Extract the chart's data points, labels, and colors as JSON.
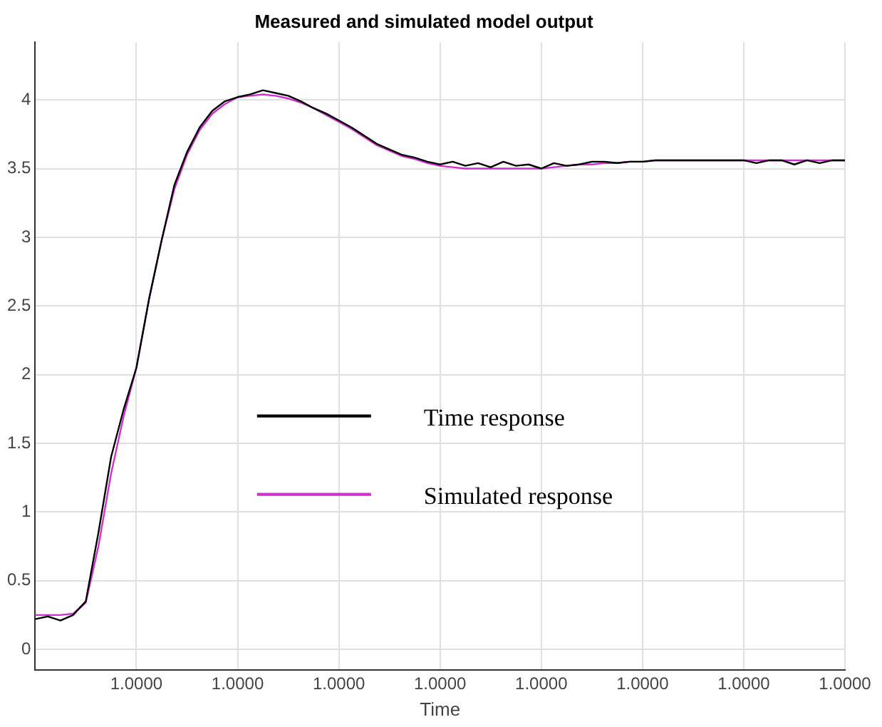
{
  "chart_data": {
    "type": "line",
    "title": "Measured and simulated model output",
    "xlabel": "Time",
    "categories": [
      null,
      null,
      null,
      null,
      null,
      null,
      null,
      null,
      "1.0000",
      null,
      null,
      null,
      null,
      null,
      null,
      null,
      "1.0000",
      null,
      null,
      null,
      null,
      null,
      null,
      null,
      "1.0000",
      null,
      null,
      null,
      null,
      null,
      null,
      null,
      "1.0000",
      null,
      null,
      null,
      null,
      null,
      null,
      null,
      "1.0000",
      null,
      null,
      null,
      null,
      null,
      null,
      null,
      "1.0000",
      null,
      null,
      null,
      null,
      null,
      null,
      null,
      "1.0000",
      null,
      null,
      null,
      null,
      null,
      null,
      null,
      "1.0000"
    ],
    "ylim": [
      -0.15,
      4.42
    ],
    "yticks": [
      0,
      0.5,
      1,
      1.5,
      2,
      2.5,
      3,
      3.5,
      4
    ],
    "grid": true,
    "legend": "center",
    "marker": "none",
    "line_style": "solid",
    "series": [
      {
        "name": "Time response",
        "color": "#000000",
        "values": [
          0.22,
          0.24,
          0.21,
          0.25,
          0.35,
          0.85,
          1.4,
          1.75,
          2.05,
          2.55,
          2.98,
          3.38,
          3.62,
          3.8,
          3.92,
          3.99,
          4.02,
          4.04,
          4.07,
          4.05,
          4.03,
          3.99,
          3.94,
          3.9,
          3.85,
          3.8,
          3.74,
          3.68,
          3.64,
          3.6,
          3.58,
          3.55,
          3.53,
          3.55,
          3.52,
          3.54,
          3.51,
          3.55,
          3.52,
          3.53,
          3.5,
          3.54,
          3.52,
          3.53,
          3.55,
          3.55,
          3.54,
          3.55,
          3.55,
          3.56,
          3.56,
          3.56,
          3.56,
          3.56,
          3.56,
          3.56,
          3.56,
          3.54,
          3.56,
          3.56,
          3.53,
          3.56,
          3.54,
          3.56,
          3.56
        ]
      },
      {
        "name": "Simulated response",
        "color": "#cc33cc",
        "values": [
          0.25,
          0.25,
          0.25,
          0.26,
          0.34,
          0.75,
          1.28,
          1.7,
          2.05,
          2.55,
          2.98,
          3.35,
          3.6,
          3.78,
          3.9,
          3.97,
          4.02,
          4.03,
          4.04,
          4.03,
          4.01,
          3.98,
          3.94,
          3.89,
          3.84,
          3.79,
          3.73,
          3.67,
          3.63,
          3.59,
          3.57,
          3.54,
          3.52,
          3.51,
          3.5,
          3.5,
          3.5,
          3.5,
          3.5,
          3.5,
          3.5,
          3.51,
          3.52,
          3.53,
          3.53,
          3.54,
          3.54,
          3.55,
          3.55,
          3.56,
          3.56,
          3.56,
          3.56,
          3.56,
          3.56,
          3.56,
          3.56,
          3.56,
          3.56,
          3.56,
          3.56,
          3.56,
          3.56,
          3.56,
          3.56
        ]
      }
    ]
  }
}
